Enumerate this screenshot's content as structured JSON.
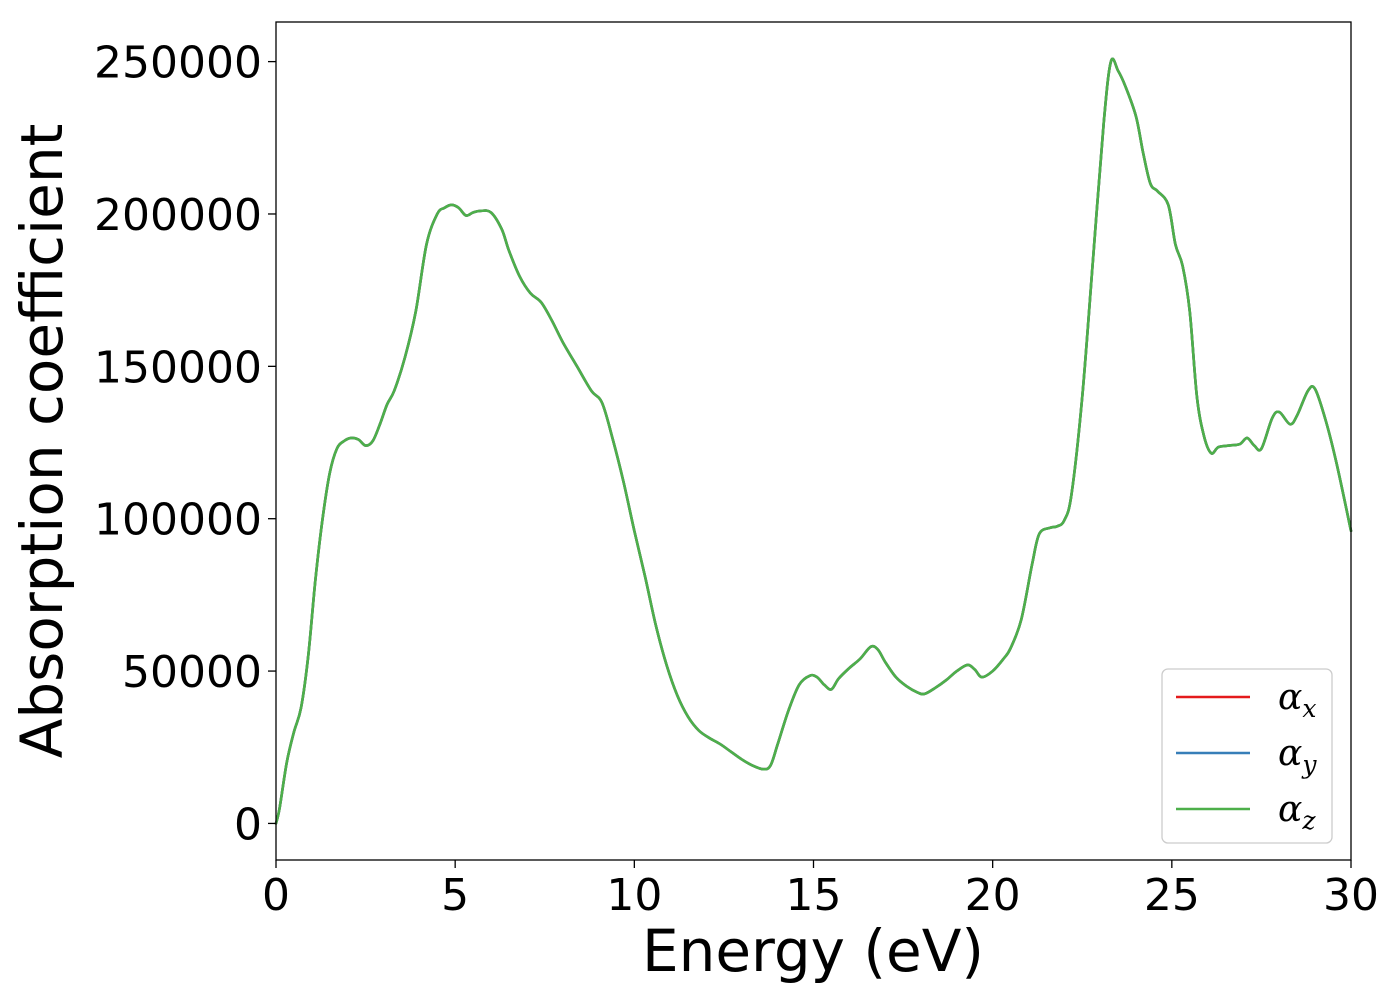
{
  "chart_data": {
    "type": "line",
    "xlabel": "Energy (eV)",
    "ylabel": "Absorption coefficient",
    "xlim": [
      0,
      30
    ],
    "ylim": [
      -12000,
      263000
    ],
    "xticks": [
      0,
      5,
      10,
      15,
      20,
      25,
      30
    ],
    "yticks": [
      0,
      50000,
      100000,
      150000,
      200000,
      250000
    ],
    "xtick_labels": [
      "0",
      "5",
      "10",
      "15",
      "20",
      "25",
      "30"
    ],
    "ytick_labels": [
      "0",
      "50000",
      "100000",
      "150000",
      "200000",
      "250000"
    ],
    "grid": false,
    "legend_position": "bottom-right",
    "colors": {
      "alpha_x": "#e41a1c",
      "alpha_y": "#377eb8",
      "alpha_z": "#4daf4a"
    },
    "series": [
      {
        "key": "alpha_x",
        "legend_symbol": "α",
        "legend_sub": "x",
        "x": [
          0,
          0.1,
          0.3,
          0.5,
          0.7,
          0.9,
          1.1,
          1.3,
          1.5,
          1.7,
          1.9,
          2.1,
          2.3,
          2.5,
          2.7,
          2.9,
          3.1,
          3.3,
          3.6,
          3.9,
          4.2,
          4.5,
          4.7,
          4.9,
          5.1,
          5.3,
          5.5,
          5.7,
          6.0,
          6.3,
          6.5,
          6.8,
          7.1,
          7.4,
          7.7,
          8.0,
          8.4,
          8.8,
          9.1,
          9.4,
          9.7,
          10.0,
          10.3,
          10.6,
          10.9,
          11.2,
          11.5,
          11.8,
          12.1,
          12.4,
          12.7,
          13.0,
          13.3,
          13.6,
          13.8,
          14.0,
          14.3,
          14.6,
          14.9,
          15.1,
          15.3,
          15.5,
          15.7,
          16.0,
          16.3,
          16.6,
          16.8,
          17.0,
          17.3,
          17.6,
          17.9,
          18.1,
          18.4,
          18.7,
          19.0,
          19.3,
          19.5,
          19.7,
          20.0,
          20.3,
          20.5,
          20.8,
          21.1,
          21.3,
          21.6,
          21.8,
          22.0,
          22.2,
          22.5,
          22.8,
          23.1,
          23.3,
          23.5,
          23.7,
          24.0,
          24.2,
          24.4,
          24.6,
          24.9,
          25.1,
          25.3,
          25.5,
          25.7,
          25.9,
          26.1,
          26.3,
          26.6,
          26.9,
          27.1,
          27.3,
          27.5,
          27.8,
          28.0,
          28.3,
          28.5,
          28.8,
          29.0,
          29.3,
          29.6,
          30.0
        ],
        "y": [
          0,
          5000,
          20000,
          30000,
          38000,
          55000,
          80000,
          100000,
          115000,
          123000,
          125500,
          126500,
          126000,
          124000,
          125500,
          131000,
          137500,
          142000,
          153000,
          168000,
          190000,
          200000,
          202000,
          203000,
          202000,
          199500,
          200500,
          201000,
          200500,
          195000,
          188000,
          179500,
          174000,
          171000,
          165000,
          158000,
          150000,
          142000,
          138000,
          126000,
          112000,
          96000,
          81000,
          65000,
          52000,
          42000,
          35000,
          30500,
          28000,
          26000,
          23500,
          21000,
          19000,
          17800,
          19000,
          26000,
          37000,
          45500,
          48500,
          48000,
          45500,
          44000,
          47500,
          51000,
          54000,
          58000,
          57000,
          53000,
          48000,
          45000,
          43000,
          42500,
          44500,
          47000,
          50000,
          52000,
          50500,
          48000,
          50000,
          54000,
          57500,
          67000,
          85000,
          95000,
          97000,
          97500,
          99500,
          108000,
          140000,
          185000,
          230000,
          250000,
          247000,
          242000,
          232000,
          220000,
          210000,
          207500,
          203000,
          190000,
          183000,
          168000,
          140000,
          127000,
          121500,
          123500,
          124000,
          124500,
          126500,
          124000,
          123000,
          133000,
          135000,
          131000,
          134000,
          142000,
          142500,
          132000,
          118000,
          96000
        ]
      },
      {
        "key": "alpha_y",
        "legend_symbol": "α",
        "legend_sub": "y",
        "x": [
          0,
          0.1,
          0.3,
          0.5,
          0.7,
          0.9,
          1.1,
          1.3,
          1.5,
          1.7,
          1.9,
          2.1,
          2.3,
          2.5,
          2.7,
          2.9,
          3.1,
          3.3,
          3.6,
          3.9,
          4.2,
          4.5,
          4.7,
          4.9,
          5.1,
          5.3,
          5.5,
          5.7,
          6.0,
          6.3,
          6.5,
          6.8,
          7.1,
          7.4,
          7.7,
          8.0,
          8.4,
          8.8,
          9.1,
          9.4,
          9.7,
          10.0,
          10.3,
          10.6,
          10.9,
          11.2,
          11.5,
          11.8,
          12.1,
          12.4,
          12.7,
          13.0,
          13.3,
          13.6,
          13.8,
          14.0,
          14.3,
          14.6,
          14.9,
          15.1,
          15.3,
          15.5,
          15.7,
          16.0,
          16.3,
          16.6,
          16.8,
          17.0,
          17.3,
          17.6,
          17.9,
          18.1,
          18.4,
          18.7,
          19.0,
          19.3,
          19.5,
          19.7,
          20.0,
          20.3,
          20.5,
          20.8,
          21.1,
          21.3,
          21.6,
          21.8,
          22.0,
          22.2,
          22.5,
          22.8,
          23.1,
          23.3,
          23.5,
          23.7,
          24.0,
          24.2,
          24.4,
          24.6,
          24.9,
          25.1,
          25.3,
          25.5,
          25.7,
          25.9,
          26.1,
          26.3,
          26.6,
          26.9,
          27.1,
          27.3,
          27.5,
          27.8,
          28.0,
          28.3,
          28.5,
          28.8,
          29.0,
          29.3,
          29.6,
          30.0
        ],
        "y": [
          0,
          5000,
          20000,
          30000,
          38000,
          55000,
          80000,
          100000,
          115000,
          123000,
          125500,
          126500,
          126000,
          124000,
          125500,
          131000,
          137500,
          142000,
          153000,
          168000,
          190000,
          200000,
          202000,
          203000,
          202000,
          199500,
          200500,
          201000,
          200500,
          195000,
          188000,
          179500,
          174000,
          171000,
          165000,
          158000,
          150000,
          142000,
          138000,
          126000,
          112000,
          96000,
          81000,
          65000,
          52000,
          42000,
          35000,
          30500,
          28000,
          26000,
          23500,
          21000,
          19000,
          17800,
          19000,
          26000,
          37000,
          45500,
          48500,
          48000,
          45500,
          44000,
          47500,
          51000,
          54000,
          58000,
          57000,
          53000,
          48000,
          45000,
          43000,
          42500,
          44500,
          47000,
          50000,
          52000,
          50500,
          48000,
          50000,
          54000,
          57500,
          67000,
          85000,
          95000,
          97000,
          97500,
          99500,
          108000,
          140000,
          185000,
          230000,
          250000,
          247000,
          242000,
          232000,
          220000,
          210000,
          207500,
          203000,
          190000,
          183000,
          168000,
          140000,
          127000,
          121500,
          123500,
          124000,
          124500,
          126500,
          124000,
          123000,
          133000,
          135000,
          131000,
          134000,
          142000,
          142500,
          132000,
          118000,
          96000
        ]
      },
      {
        "key": "alpha_z",
        "legend_symbol": "α",
        "legend_sub": "z",
        "x": [
          0,
          0.1,
          0.3,
          0.5,
          0.7,
          0.9,
          1.1,
          1.3,
          1.5,
          1.7,
          1.9,
          2.1,
          2.3,
          2.5,
          2.7,
          2.9,
          3.1,
          3.3,
          3.6,
          3.9,
          4.2,
          4.5,
          4.7,
          4.9,
          5.1,
          5.3,
          5.5,
          5.7,
          6.0,
          6.3,
          6.5,
          6.8,
          7.1,
          7.4,
          7.7,
          8.0,
          8.4,
          8.8,
          9.1,
          9.4,
          9.7,
          10.0,
          10.3,
          10.6,
          10.9,
          11.2,
          11.5,
          11.8,
          12.1,
          12.4,
          12.7,
          13.0,
          13.3,
          13.6,
          13.8,
          14.0,
          14.3,
          14.6,
          14.9,
          15.1,
          15.3,
          15.5,
          15.7,
          16.0,
          16.3,
          16.6,
          16.8,
          17.0,
          17.3,
          17.6,
          17.9,
          18.1,
          18.4,
          18.7,
          19.0,
          19.3,
          19.5,
          19.7,
          20.0,
          20.3,
          20.5,
          20.8,
          21.1,
          21.3,
          21.6,
          21.8,
          22.0,
          22.2,
          22.5,
          22.8,
          23.1,
          23.3,
          23.5,
          23.7,
          24.0,
          24.2,
          24.4,
          24.6,
          24.9,
          25.1,
          25.3,
          25.5,
          25.7,
          25.9,
          26.1,
          26.3,
          26.6,
          26.9,
          27.1,
          27.3,
          27.5,
          27.8,
          28.0,
          28.3,
          28.5,
          28.8,
          29.0,
          29.3,
          29.6,
          30.0
        ],
        "y": [
          0,
          5000,
          20000,
          30000,
          38000,
          55000,
          80000,
          100000,
          115000,
          123000,
          125500,
          126500,
          126000,
          124000,
          125500,
          131000,
          137500,
          142000,
          153000,
          168000,
          190000,
          200000,
          202000,
          203000,
          202000,
          199500,
          200500,
          201000,
          200500,
          195000,
          188000,
          179500,
          174000,
          171000,
          165000,
          158000,
          150000,
          142000,
          138000,
          126000,
          112000,
          96000,
          81000,
          65000,
          52000,
          42000,
          35000,
          30500,
          28000,
          26000,
          23500,
          21000,
          19000,
          17800,
          19000,
          26000,
          37000,
          45500,
          48500,
          48000,
          45500,
          44000,
          47500,
          51000,
          54000,
          58000,
          57000,
          53000,
          48000,
          45000,
          43000,
          42500,
          44500,
          47000,
          50000,
          52000,
          50500,
          48000,
          50000,
          54000,
          57500,
          67000,
          85000,
          95000,
          97000,
          97500,
          99500,
          108000,
          140000,
          185000,
          230000,
          250000,
          247000,
          242000,
          232000,
          220000,
          210000,
          207500,
          203000,
          190000,
          183000,
          168000,
          140000,
          127000,
          121500,
          123500,
          124000,
          124500,
          126500,
          124000,
          123000,
          133000,
          135000,
          131000,
          134000,
          142000,
          142500,
          132000,
          118000,
          96000
        ]
      }
    ]
  }
}
